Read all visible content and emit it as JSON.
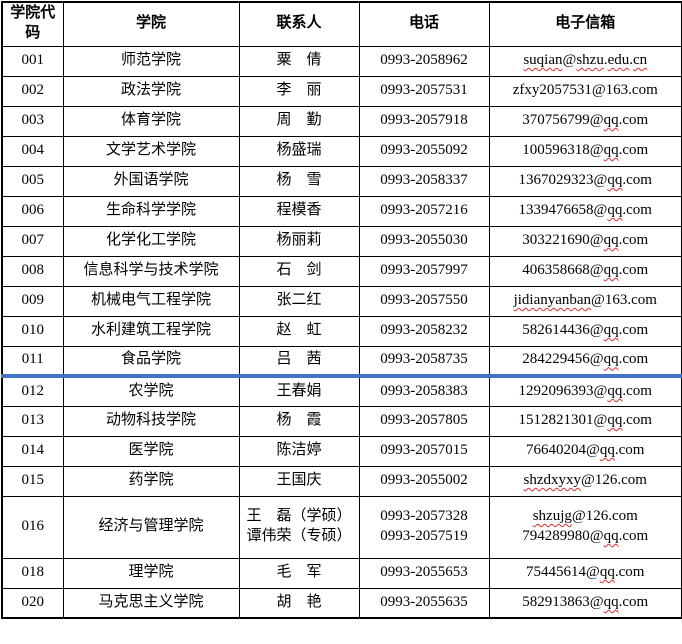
{
  "table": {
    "columns": [
      {
        "key": "code",
        "label": "学院代码"
      },
      {
        "key": "college",
        "label": "学院"
      },
      {
        "key": "contact",
        "label": "联系人"
      },
      {
        "key": "phone",
        "label": "电话"
      },
      {
        "key": "email",
        "label": "电子信箱"
      }
    ],
    "blue_divider_after_code": "011",
    "divider_color": "#4472c4",
    "squiggle_color": "#d0342c",
    "rows": [
      {
        "code": "001",
        "college": "师范学院",
        "contacts": [
          "粟　倩"
        ],
        "phones": [
          "0993-2058962"
        ],
        "emails": [
          {
            "address": "suqian@shzu.edu.cn",
            "misspelled": [
              "suqian",
              "shzu",
              "edu",
              "cn"
            ]
          }
        ]
      },
      {
        "code": "002",
        "college": "政法学院",
        "contacts": [
          "李　丽"
        ],
        "phones": [
          "0993-2057531"
        ],
        "emails": [
          {
            "address": "zfxy2057531@163.com",
            "misspelled": []
          }
        ]
      },
      {
        "code": "003",
        "college": "体育学院",
        "contacts": [
          "周　勤"
        ],
        "phones": [
          "0993-2057918"
        ],
        "emails": [
          {
            "address": "370756799@qq.com",
            "misspelled": [
              "qq"
            ]
          }
        ]
      },
      {
        "code": "004",
        "college": "文学艺术学院",
        "contacts": [
          "杨盛瑞"
        ],
        "phones": [
          "0993-2055092"
        ],
        "emails": [
          {
            "address": "100596318@qq.com",
            "misspelled": [
              "qq"
            ]
          }
        ]
      },
      {
        "code": "005",
        "college": "外国语学院",
        "contacts": [
          "杨　雪"
        ],
        "phones": [
          "0993-2058337"
        ],
        "emails": [
          {
            "address": "1367029323@qq.com",
            "misspelled": [
              "qq"
            ]
          }
        ]
      },
      {
        "code": "006",
        "college": "生命科学学院",
        "contacts": [
          "程模香"
        ],
        "phones": [
          "0993-2057216"
        ],
        "emails": [
          {
            "address": "1339476658@qq.com",
            "misspelled": [
              "qq"
            ]
          }
        ]
      },
      {
        "code": "007",
        "college": "化学化工学院",
        "contacts": [
          "杨丽莉"
        ],
        "phones": [
          "0993-2055030"
        ],
        "emails": [
          {
            "address": "303221690@qq.com",
            "misspelled": [
              "qq"
            ]
          }
        ]
      },
      {
        "code": "008",
        "college": "信息科学与技术学院",
        "contacts": [
          "石　剑"
        ],
        "phones": [
          "0993-2057997"
        ],
        "emails": [
          {
            "address": "406358668@qq.com",
            "misspelled": [
              "qq"
            ]
          }
        ]
      },
      {
        "code": "009",
        "college": "机械电气工程学院",
        "contacts": [
          "张二红"
        ],
        "phones": [
          "0993-2057550"
        ],
        "emails": [
          {
            "address": "jidianyanban@163.com",
            "misspelled": [
              "jidianyanban"
            ]
          }
        ]
      },
      {
        "code": "010",
        "college": "水利建筑工程学院",
        "contacts": [
          "赵　虹"
        ],
        "phones": [
          "0993-2058232"
        ],
        "emails": [
          {
            "address": "582614436@qq.com",
            "misspelled": [
              "qq"
            ]
          }
        ]
      },
      {
        "code": "011",
        "college": "食品学院",
        "contacts": [
          "吕　茜"
        ],
        "phones": [
          "0993-2058735"
        ],
        "emails": [
          {
            "address": "284229456@qq.com",
            "misspelled": [
              "qq"
            ]
          }
        ]
      },
      {
        "code": "012",
        "college": "农学院",
        "contacts": [
          "王春娟"
        ],
        "phones": [
          "0993-2058383"
        ],
        "emails": [
          {
            "address": "1292096393@qq.com",
            "misspelled": [
              "qq"
            ]
          }
        ]
      },
      {
        "code": "013",
        "college": "动物科技学院",
        "contacts": [
          "杨　霞"
        ],
        "phones": [
          "0993-2057805"
        ],
        "emails": [
          {
            "address": "1512821301@qq.com",
            "misspelled": [
              "qq"
            ]
          }
        ]
      },
      {
        "code": "014",
        "college": "医学院",
        "contacts": [
          "陈洁婷"
        ],
        "phones": [
          "0993-2057015"
        ],
        "emails": [
          {
            "address": "76640204@qq.com",
            "misspelled": [
              "qq"
            ]
          }
        ]
      },
      {
        "code": "015",
        "college": "药学院",
        "contacts": [
          "王国庆"
        ],
        "phones": [
          "0993-2055002"
        ],
        "emails": [
          {
            "address": "shzdxyxy@126.com",
            "misspelled": [
              "shzdxyxy"
            ]
          }
        ]
      },
      {
        "code": "016",
        "college": "经济与管理学院",
        "contacts": [
          "王　磊（学硕）",
          "谭伟荣（专硕）"
        ],
        "phones": [
          "0993-2057328",
          "0993-2057519"
        ],
        "emails": [
          {
            "address": "shzujg@126.com",
            "misspelled": [
              "shzujg"
            ]
          },
          {
            "address": "794289980@qq.com",
            "misspelled": [
              "qq"
            ]
          }
        ]
      },
      {
        "code": "018",
        "college": "理学院",
        "contacts": [
          "毛　军"
        ],
        "phones": [
          "0993-2055653"
        ],
        "emails": [
          {
            "address": "75445614@qq.com",
            "misspelled": [
              "qq"
            ]
          }
        ]
      },
      {
        "code": "020",
        "college": "马克思主义学院",
        "contacts": [
          "胡　艳"
        ],
        "phones": [
          "0993-2055635"
        ],
        "emails": [
          {
            "address": "582913863@qq.com",
            "misspelled": [
              "qq"
            ]
          }
        ]
      }
    ]
  }
}
